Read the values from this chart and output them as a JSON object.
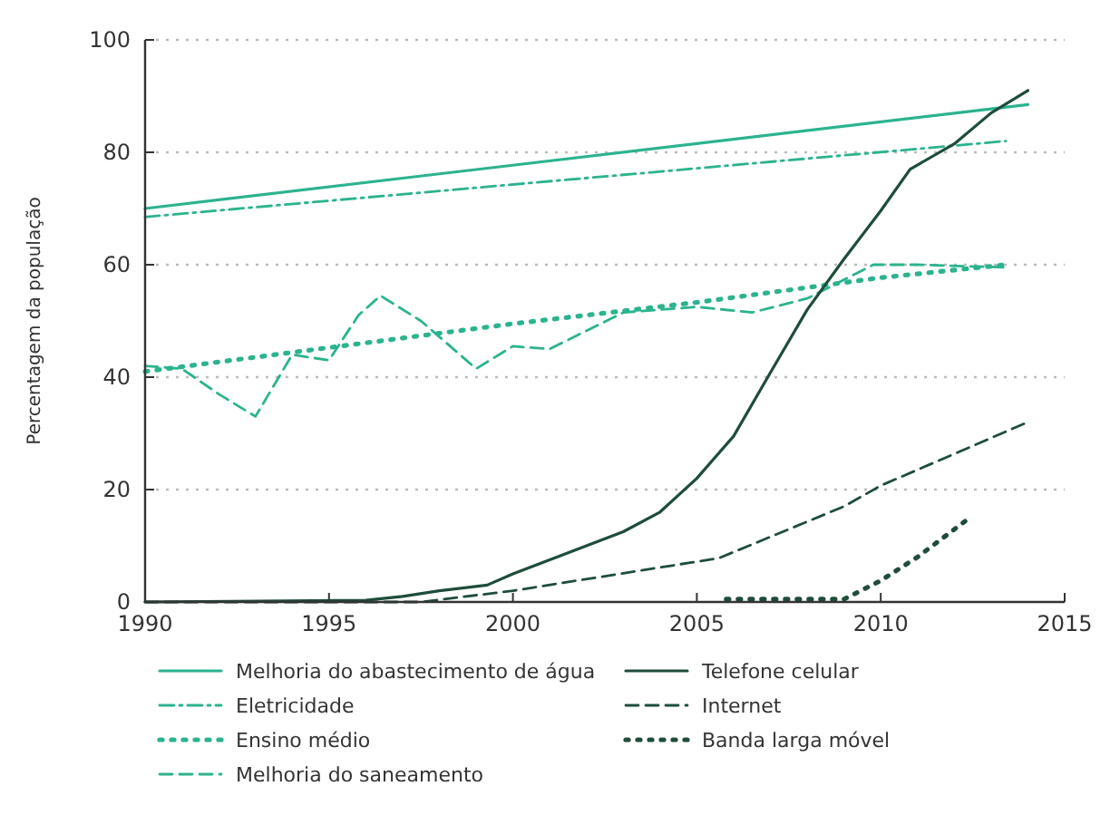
{
  "chart_data": {
    "type": "line",
    "ylabel": "Percentagem da população",
    "xlim": [
      1990,
      2015
    ],
    "xticks": [
      1990,
      1995,
      2000,
      2005,
      2010,
      2015
    ],
    "ylim": [
      0,
      100
    ],
    "yticks": [
      0,
      20,
      40,
      60,
      80,
      100
    ],
    "grid": "y",
    "legend": "bottom",
    "series": [
      {
        "name": "Melhoria do abastecimento de água",
        "color": "#2bb38f",
        "line_style": "solid",
        "x": [
          1990,
          2014
        ],
        "values": [
          70,
          88.5
        ]
      },
      {
        "name": "Eletricidade",
        "color": "#2bb38f",
        "line_style": "dashdot",
        "x": [
          1990,
          2013.4
        ],
        "values": [
          68.5,
          82
        ]
      },
      {
        "name": "Ensino médio",
        "color": "#2bb38f",
        "line_style": "dotted",
        "x": [
          1990,
          2000,
          2005,
          2010,
          2013.4
        ],
        "values": [
          41,
          49.5,
          53.3,
          57.7,
          60
        ]
      },
      {
        "name": "Melhoria do saneamento",
        "color": "#2bb38f",
        "line_style": "dashed",
        "x": [
          1990,
          1991,
          1992,
          1993,
          1994,
          1995,
          1995.8,
          1996.4,
          1997.5,
          1999,
          2000,
          2001,
          2003,
          2005,
          2006.5,
          2008,
          2009.8,
          2011,
          2013.5
        ],
        "values": [
          42,
          41.5,
          37,
          33,
          44,
          43,
          51,
          54.5,
          50,
          41.5,
          45.5,
          45,
          51.5,
          52.5,
          51.5,
          54,
          60,
          60,
          59.5
        ]
      },
      {
        "name": "Telefone celular",
        "color": "#1e4d3a",
        "line_style": "solid",
        "x": [
          1990,
          1996,
          1997,
          1998,
          1999.3,
          2000,
          2001,
          2002,
          2003,
          2004,
          2005,
          2006,
          2007,
          2008,
          2009,
          2010,
          2010.8,
          2012,
          2013,
          2014
        ],
        "values": [
          0,
          0.3,
          1,
          2,
          3,
          5,
          7.5,
          10,
          12.5,
          16,
          22,
          29.5,
          40.8,
          52,
          61,
          69.6,
          77,
          81.5,
          87,
          91
        ]
      },
      {
        "name": "Internet",
        "color": "#1e4d3a",
        "line_style": "dashed",
        "x": [
          1990,
          1997.5,
          2000,
          2005.6,
          2009,
          2010,
          2014
        ],
        "values": [
          0,
          0,
          2,
          7.8,
          17,
          20.7,
          32
        ]
      },
      {
        "name": "Banda larga móvel",
        "color": "#1e4d3a",
        "line_style": "dotted",
        "x": [
          2005.8,
          2009,
          2010,
          2011,
          2012.3
        ],
        "values": [
          0.5,
          0.5,
          3.8,
          8,
          14.4
        ]
      }
    ]
  }
}
